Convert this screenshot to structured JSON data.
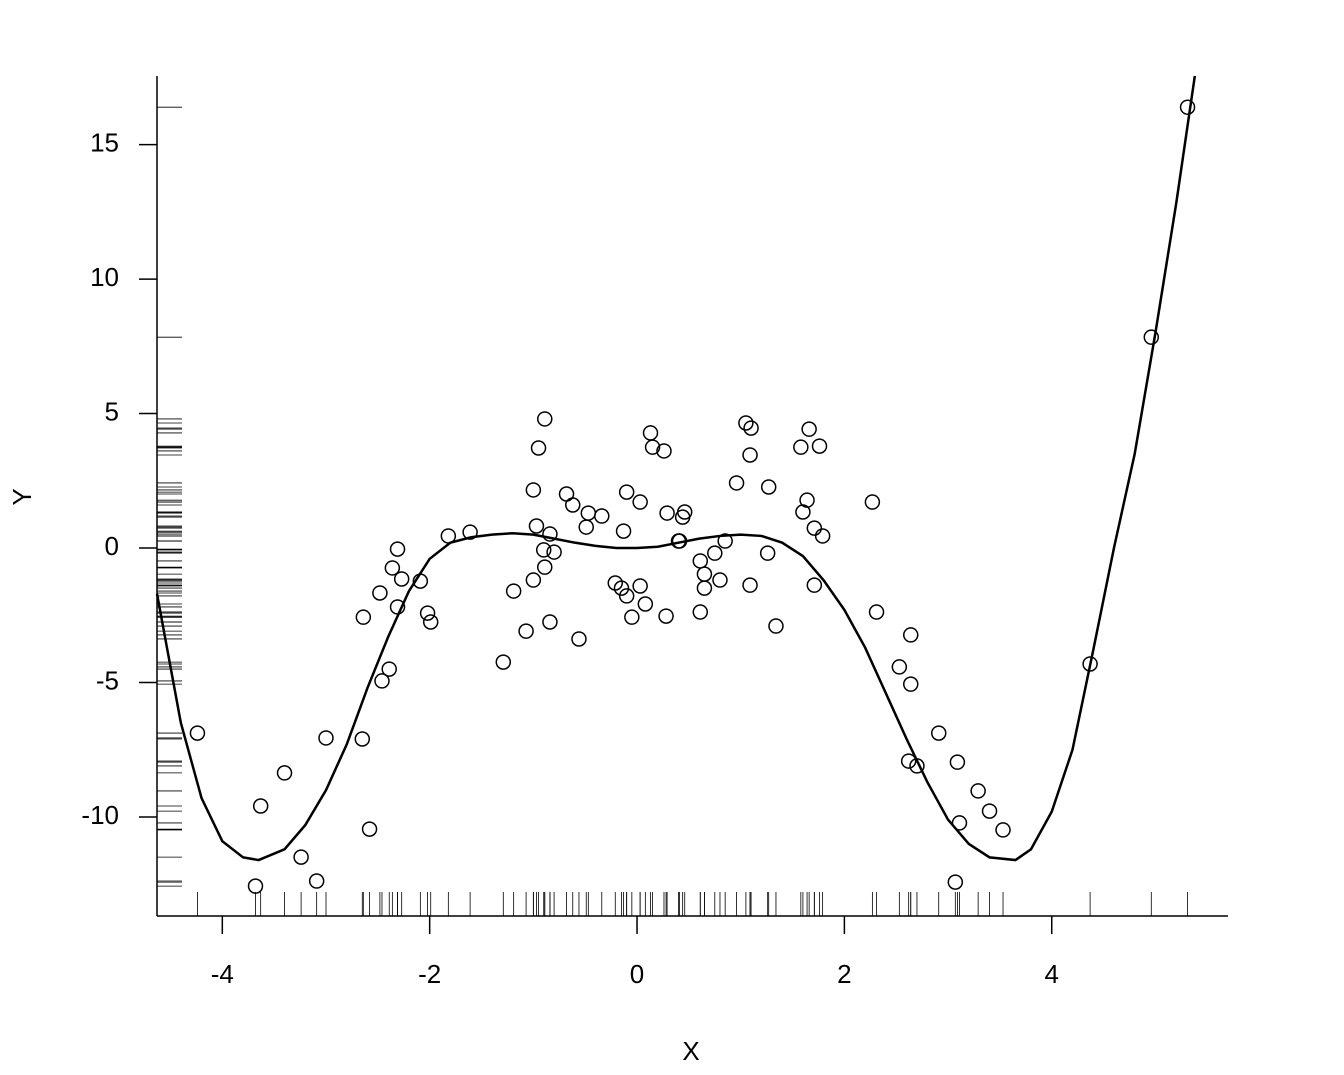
{
  "chart_data": {
    "type": "scatter",
    "x_label": "X",
    "y_label": "Y",
    "xlim": [
      -4.63,
      5.7
    ],
    "ylim": [
      -13.68,
      17.55
    ],
    "xticks": [
      -4,
      -2,
      0,
      2,
      4
    ],
    "yticks": [
      -10,
      -5,
      0,
      5,
      10,
      15
    ],
    "color": "#000000",
    "rug": true,
    "points": {
      "x": [
        -4.24,
        -3.68,
        -3.63,
        -3.4,
        -3.24,
        -3.09,
        -3.0,
        -2.65,
        -2.58,
        -2.64,
        -2.48,
        -2.46,
        -2.39,
        -2.36,
        -2.31,
        -2.31,
        -2.27,
        -2.09,
        -2.02,
        -1.99,
        -1.82,
        -1.61,
        -1.29,
        -1.19,
        -1.07,
        -1.0,
        -1.0,
        -0.97,
        -0.95,
        -0.89,
        -0.9,
        -0.89,
        -0.84,
        -0.84,
        -0.8,
        -0.68,
        -0.62,
        -0.56,
        -0.49,
        -0.47,
        -0.34,
        -0.21,
        -0.15,
        -0.13,
        -0.1,
        -0.1,
        -0.05,
        0.03,
        0.03,
        0.08,
        0.13,
        0.15,
        0.26,
        0.28,
        0.29,
        0.4,
        0.41,
        0.44,
        0.46,
        0.61,
        0.61,
        0.65,
        0.65,
        0.75,
        0.8,
        0.85,
        0.96,
        1.05,
        1.09,
        1.1,
        1.09,
        1.26,
        1.27,
        1.34,
        1.58,
        1.6,
        1.64,
        1.66,
        1.71,
        1.71,
        1.76,
        1.79,
        2.27,
        2.31,
        2.53,
        2.62,
        2.7,
        2.64,
        2.64,
        2.91,
        3.07,
        3.09,
        3.11,
        3.29,
        3.4,
        3.53,
        4.37,
        4.96,
        5.31
      ],
      "y": [
        -6.88,
        -12.57,
        -9.59,
        -8.36,
        -11.49,
        -12.38,
        -7.06,
        -7.1,
        -10.45,
        -2.57,
        -1.67,
        -4.94,
        -4.5,
        -0.74,
        -0.04,
        -2.19,
        -1.15,
        -1.23,
        -2.42,
        -2.75,
        0.45,
        0.59,
        -4.24,
        -1.6,
        -3.09,
        2.16,
        -1.19,
        0.82,
        3.72,
        4.8,
        -0.07,
        -0.71,
        0.52,
        -2.75,
        -0.15,
        2.01,
        1.6,
        -3.38,
        0.78,
        1.3,
        1.19,
        -1.3,
        -1.49,
        0.63,
        2.08,
        -1.78,
        -2.57,
        1.71,
        -1.41,
        -2.08,
        4.28,
        3.75,
        3.61,
        -2.53,
        1.3,
        0.26,
        0.26,
        1.15,
        1.34,
        -0.48,
        -2.38,
        -0.97,
        -1.49,
        -0.19,
        -1.19,
        0.26,
        2.42,
        4.65,
        -1.38,
        4.46,
        3.46,
        -0.19,
        2.27,
        -2.9,
        3.75,
        1.34,
        1.78,
        4.42,
        0.74,
        -1.38,
        3.79,
        0.45,
        1.71,
        -2.38,
        -4.42,
        -7.92,
        -8.1,
        -5.06,
        -3.23,
        -6.88,
        -12.42,
        -7.96,
        -10.22,
        -9.03,
        -9.78,
        -10.48,
        -4.31,
        7.84,
        16.39
      ]
    },
    "curve": {
      "x": [
        -4.63,
        -4.4,
        -4.2,
        -4.0,
        -3.8,
        -3.65,
        -3.4,
        -3.2,
        -3.0,
        -2.8,
        -2.6,
        -2.4,
        -2.2,
        -2.0,
        -1.8,
        -1.6,
        -1.4,
        -1.2,
        -1.0,
        -0.8,
        -0.6,
        -0.4,
        -0.2,
        0,
        0.2,
        0.4,
        0.6,
        0.8,
        1.0,
        1.2,
        1.4,
        1.6,
        1.8,
        2.0,
        2.2,
        2.4,
        2.6,
        2.8,
        3.0,
        3.2,
        3.4,
        3.65,
        3.8,
        4.0,
        4.2,
        4.4,
        4.6,
        4.8,
        5.0,
        5.2,
        5.38
      ],
      "y": [
        -1.7,
        -6.5,
        -9.3,
        -10.9,
        -11.5,
        -11.6,
        -11.2,
        -10.3,
        -9.0,
        -7.3,
        -5.2,
        -3.3,
        -1.6,
        -0.4,
        0.2,
        0.4,
        0.5,
        0.55,
        0.5,
        0.35,
        0.2,
        0.08,
        0.0,
        0.0,
        0.05,
        0.2,
        0.35,
        0.45,
        0.5,
        0.45,
        0.2,
        -0.3,
        -1.2,
        -2.3,
        -3.7,
        -5.4,
        -7.1,
        -8.7,
        -10.1,
        -11.0,
        -11.5,
        -11.6,
        -11.2,
        -9.8,
        -7.5,
        -3.8,
        0,
        3.5,
        8.0,
        12.8,
        17.55
      ]
    }
  }
}
